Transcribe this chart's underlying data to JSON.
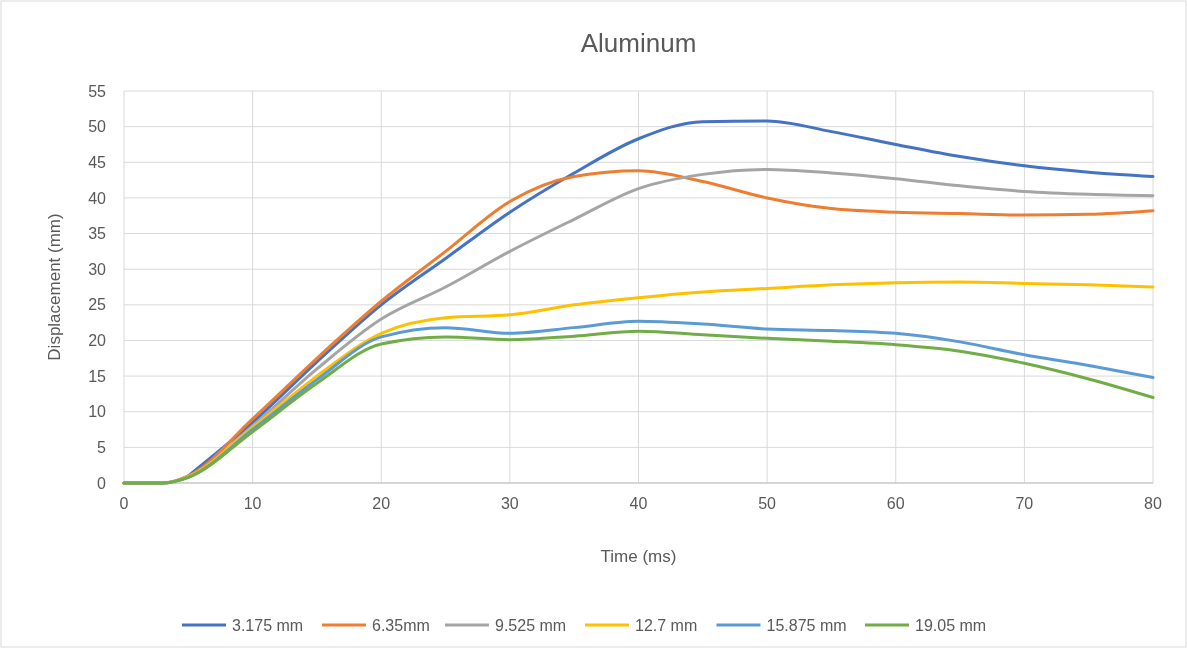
{
  "chart_data": {
    "type": "line",
    "title": "Aluminum",
    "xlabel": "Time (ms)",
    "ylabel": "Displacement (mm)",
    "x": [
      0,
      3,
      5,
      10,
      15,
      20,
      25,
      30,
      35,
      40,
      45,
      50,
      55,
      60,
      65,
      70,
      75,
      80
    ],
    "xlim": [
      0,
      80
    ],
    "xticks": [
      0,
      10,
      20,
      30,
      40,
      50,
      60,
      70,
      80
    ],
    "ylim": [
      0,
      55
    ],
    "yticks": [
      0,
      5,
      10,
      15,
      20,
      25,
      30,
      35,
      40,
      45,
      50,
      55
    ],
    "grid": true,
    "legend": "bottom",
    "marker": "none",
    "line_style": "solid",
    "series": [
      {
        "name": "3.175 mm",
        "color": "#4472c4",
        "values": [
          null,
          null,
          1,
          8.5,
          17,
          25,
          31.5,
          38,
          43.5,
          48.3,
          50.7,
          50.8,
          49.3,
          47.5,
          45.8,
          44.5,
          43.6,
          43
        ]
      },
      {
        "name": "6.35mm",
        "color": "#ed7d31",
        "values": [
          0,
          0,
          1,
          9,
          17.5,
          25.5,
          32.5,
          39.5,
          43,
          43.8,
          42.3,
          40,
          38.5,
          38,
          37.8,
          37.6,
          37.7,
          38.2
        ]
      },
      {
        "name": "9.525 mm",
        "color": "#a5a5a5",
        "values": [
          0,
          0,
          0.9,
          8,
          16,
          23,
          27.5,
          32.5,
          37,
          41.3,
          43.3,
          44,
          43.5,
          42.7,
          41.7,
          40.9,
          40.5,
          40.3
        ]
      },
      {
        "name": "12.7 mm",
        "color": "#ffc000",
        "values": [
          0,
          0,
          0.9,
          7.8,
          15,
          21,
          23.2,
          23.6,
          25,
          26,
          26.8,
          27.3,
          27.8,
          28.1,
          28.2,
          28,
          27.8,
          27.5
        ]
      },
      {
        "name": "15.875 mm",
        "color": "#5b9bd5",
        "values": [
          0,
          0,
          0.8,
          7.5,
          14.5,
          20.5,
          21.8,
          21,
          21.8,
          22.7,
          22.3,
          21.6,
          21.4,
          21,
          19.8,
          18,
          16.5,
          14.8
        ]
      },
      {
        "name": "19.05 mm",
        "color": "#70ad47",
        "values": [
          0,
          0,
          0.8,
          7.2,
          14,
          19.5,
          20.5,
          20.1,
          20.6,
          21.3,
          20.8,
          20.3,
          19.9,
          19.4,
          18.5,
          16.8,
          14.6,
          12
        ]
      }
    ]
  }
}
